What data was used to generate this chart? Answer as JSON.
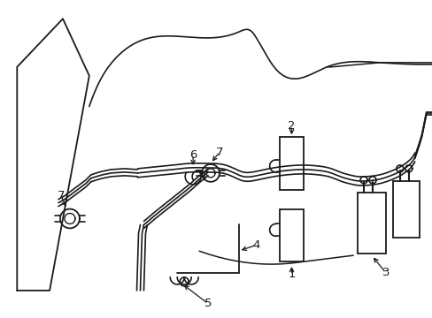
{
  "bg_color": "#ffffff",
  "line_color": "#1a1a1a",
  "fig_width": 4.89,
  "fig_height": 3.6,
  "dpi": 100,
  "label_fontsize": 9.5
}
